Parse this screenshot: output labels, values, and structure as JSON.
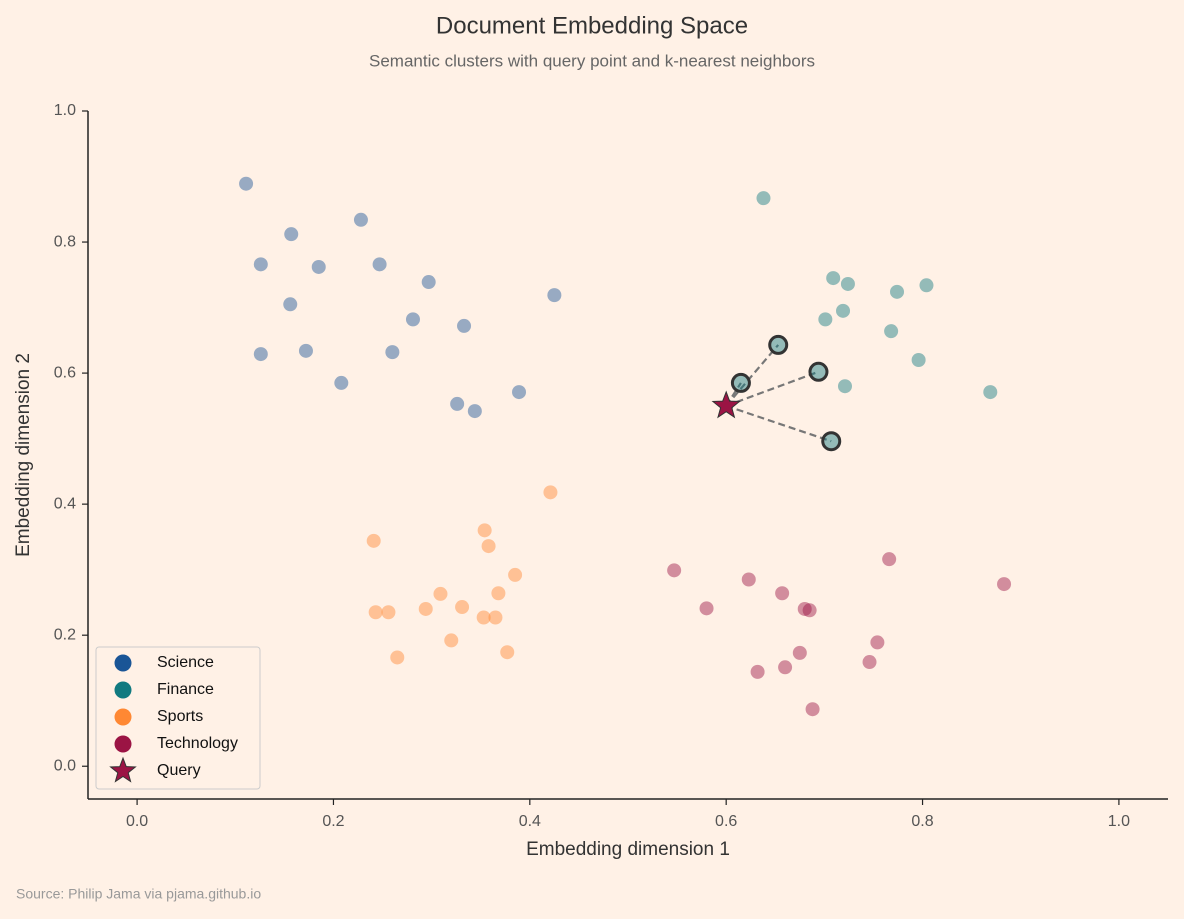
{
  "chart_data": {
    "type": "scatter",
    "title": "Document Embedding Space",
    "subtitle": "Semantic clusters with query point and k-nearest neighbors",
    "xlabel": "Embedding dimension 1",
    "ylabel": "Embedding dimension 2",
    "source": "Source: Philip Jama via pjama.github.io",
    "xlim": [
      -0.05,
      1.05
    ],
    "ylim": [
      -0.05,
      1.0
    ],
    "xticks": [
      {
        "value": 0,
        "label": "0.0"
      },
      0.2,
      0.4,
      0.6,
      0.8,
      {
        "value": 1,
        "label": "1.0"
      }
    ],
    "yticks": [
      {
        "value": 0,
        "label": "0.0"
      },
      0.2,
      0.4,
      0.6,
      0.8,
      {
        "value": 1,
        "label": "1.0"
      }
    ],
    "grid": false,
    "legend": "lower left",
    "series": [
      {
        "name": "Science",
        "color": "#1a5596",
        "x": [
          0.111,
          0.228,
          0.157,
          0.126,
          0.185,
          0.247,
          0.297,
          0.425,
          0.156,
          0.281,
          0.333,
          0.126,
          0.172,
          0.26,
          0.208,
          0.326,
          0.344,
          0.389
        ],
        "y": [
          0.889,
          0.834,
          0.812,
          0.766,
          0.762,
          0.766,
          0.739,
          0.719,
          0.705,
          0.682,
          0.672,
          0.629,
          0.634,
          0.632,
          0.585,
          0.553,
          0.542,
          0.571
        ]
      },
      {
        "name": "Finance",
        "color": "#117a80",
        "x": [
          0.638,
          0.709,
          0.724,
          0.774,
          0.804,
          0.701,
          0.719,
          0.768,
          0.796,
          0.721,
          0.869
        ],
        "y": [
          0.867,
          0.745,
          0.736,
          0.724,
          0.734,
          0.682,
          0.695,
          0.664,
          0.62,
          0.58,
          0.571
        ]
      },
      {
        "name": "Sports",
        "color": "#ff8833",
        "x": [
          0.421,
          0.241,
          0.354,
          0.358,
          0.385,
          0.309,
          0.368,
          0.243,
          0.256,
          0.294,
          0.331,
          0.353,
          0.365,
          0.32,
          0.377,
          0.265
        ],
        "y": [
          0.418,
          0.344,
          0.36,
          0.336,
          0.292,
          0.263,
          0.264,
          0.235,
          0.235,
          0.24,
          0.243,
          0.227,
          0.227,
          0.192,
          0.174,
          0.166
        ]
      },
      {
        "name": "Technology",
        "color": "#9b1444",
        "x": [
          0.547,
          0.766,
          0.883,
          0.623,
          0.657,
          0.58,
          0.68,
          0.685,
          0.754,
          0.675,
          0.746,
          0.66,
          0.632,
          0.688
        ],
        "y": [
          0.299,
          0.316,
          0.278,
          0.285,
          0.264,
          0.241,
          0.24,
          0.238,
          0.189,
          0.173,
          0.159,
          0.151,
          0.144,
          0.087
        ]
      },
      {
        "name": "Query",
        "color": "#9b1444",
        "marker": "star",
        "x": [
          0.6
        ],
        "y": [
          0.55
        ]
      }
    ],
    "neighbors": {
      "color": "#117a80",
      "x": [
        0.653,
        0.615,
        0.694,
        0.707
      ],
      "y": [
        0.643,
        0.585,
        0.602,
        0.496
      ]
    }
  }
}
